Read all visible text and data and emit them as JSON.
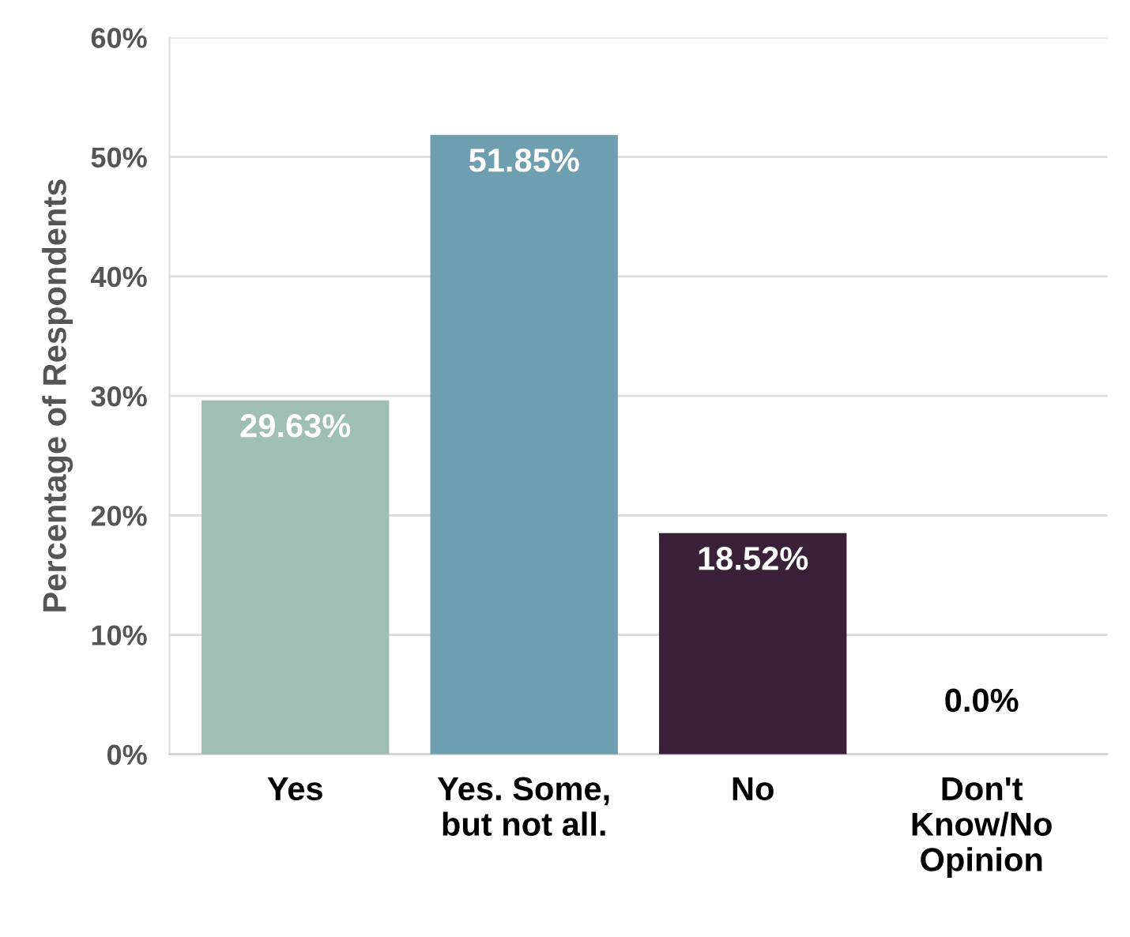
{
  "chart_data": {
    "type": "bar",
    "ylabel": "Percentage of Respondents",
    "categories": [
      "Yes",
      "Yes. Some,\nbut not all.",
      "No",
      "Don't\nKnow/No\nOpinion"
    ],
    "values": [
      29.63,
      51.85,
      18.52,
      0.0
    ],
    "colors": [
      "#9fbfb5",
      "#6e9fb0",
      "#3a2039",
      "#3a2039"
    ],
    "value_labels": [
      "29.63%",
      "51.85%",
      "18.52%",
      "0.0%"
    ],
    "ylim": [
      0,
      60
    ],
    "yticks": [
      {
        "value": 0,
        "label": "0%"
      },
      {
        "value": 10,
        "label": "10%"
      },
      {
        "value": 20,
        "label": "20%"
      },
      {
        "value": 30,
        "label": "30%"
      },
      {
        "value": 40,
        "label": "40%"
      },
      {
        "value": 50,
        "label": "50%"
      },
      {
        "value": 60,
        "label": "60%"
      }
    ],
    "grid": "y",
    "legend": false
  }
}
